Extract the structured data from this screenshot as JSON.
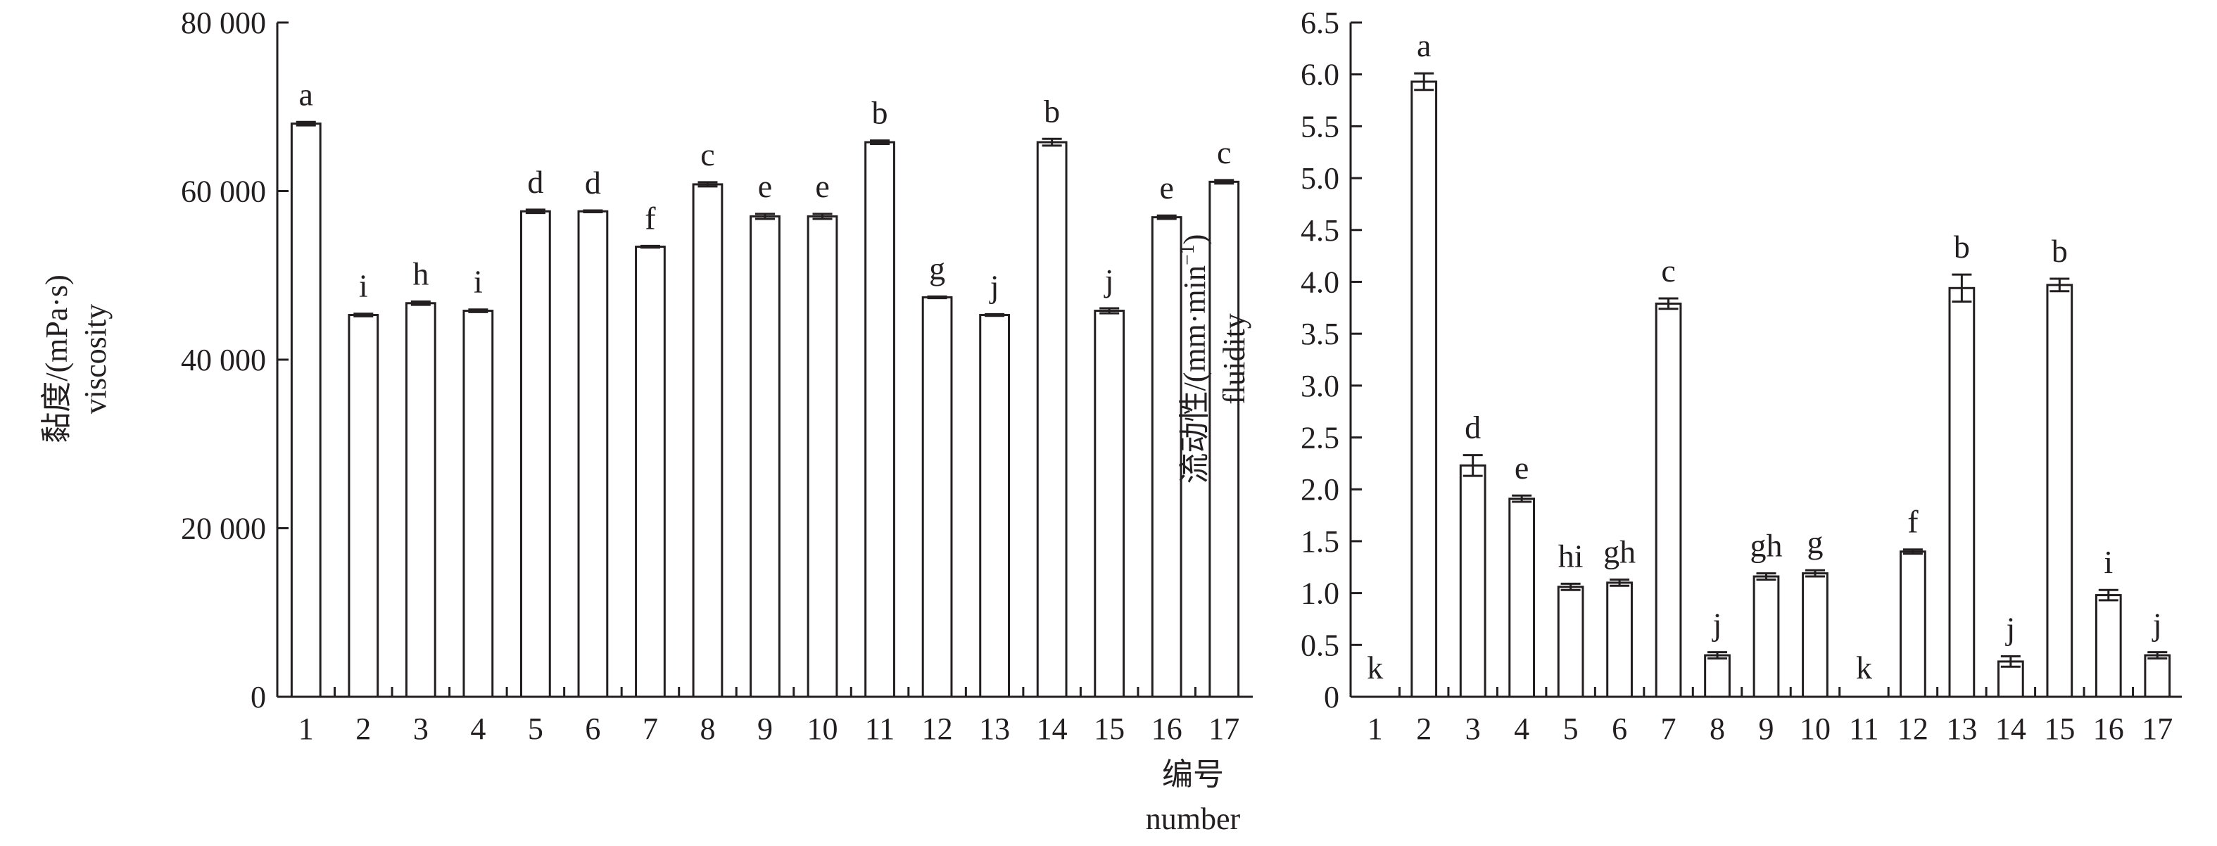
{
  "xlabel_cn": "编号",
  "xlabel_en": "number",
  "chart_data": [
    {
      "type": "bar",
      "ylabel_cn": "黏度/(mPa·s)",
      "ylabel_en": "viscosity",
      "categories": [
        "1",
        "2",
        "3",
        "4",
        "5",
        "6",
        "7",
        "8",
        "9",
        "10",
        "11",
        "12",
        "13",
        "14",
        "15",
        "16",
        "17"
      ],
      "values": [
        68000,
        45300,
        46700,
        45800,
        57600,
        57600,
        53400,
        60800,
        57000,
        57000,
        65800,
        47400,
        45300,
        65800,
        45800,
        56900,
        61100
      ],
      "errors": [
        200,
        150,
        200,
        150,
        200,
        100,
        100,
        250,
        300,
        300,
        200,
        100,
        100,
        400,
        300,
        200,
        200
      ],
      "letters": [
        "a",
        "i",
        "h",
        "i",
        "d",
        "d",
        "f",
        "c",
        "e",
        "e",
        "b",
        "g",
        "j",
        "b",
        "j",
        "e",
        "c"
      ],
      "ylim": [
        0,
        80000
      ],
      "yticks": [
        0,
        20000,
        40000,
        60000,
        80000
      ],
      "ytick_labels": [
        "0",
        "20 000",
        "40 000",
        "60 000",
        "80 000"
      ],
      "grid": false
    },
    {
      "type": "bar",
      "ylabel_cn": "流动性/(mm·min",
      "ylabel_sup": "−1",
      "ylabel_close": ")",
      "ylabel_en": "fluidity",
      "categories": [
        "1",
        "2",
        "3",
        "4",
        "5",
        "6",
        "7",
        "8",
        "9",
        "10",
        "11",
        "12",
        "13",
        "14",
        "15",
        "16",
        "17"
      ],
      "values": [
        0,
        5.93,
        2.23,
        1.91,
        1.06,
        1.1,
        3.79,
        0.4,
        1.16,
        1.19,
        0,
        1.4,
        3.94,
        0.34,
        3.97,
        0.98,
        0.4
      ],
      "errors": [
        0,
        0.08,
        0.1,
        0.03,
        0.03,
        0.03,
        0.05,
        0.03,
        0.03,
        0.03,
        0,
        0.02,
        0.13,
        0.05,
        0.06,
        0.05,
        0.03
      ],
      "letters": [
        "k",
        "a",
        "d",
        "e",
        "hi",
        "gh",
        "c",
        "j",
        "gh",
        "g",
        "k",
        "f",
        "b",
        "j",
        "b",
        "i",
        "j"
      ],
      "ylim": [
        0,
        6.5
      ],
      "yticks": [
        0,
        0.5,
        1.0,
        1.5,
        2.0,
        2.5,
        3.0,
        3.5,
        4.0,
        4.5,
        5.0,
        5.5,
        6.0,
        6.5
      ],
      "ytick_labels": [
        "0",
        "0.5",
        "1.0",
        "1.5",
        "2.0",
        "2.5",
        "3.0",
        "3.5",
        "4.0",
        "4.5",
        "5.0",
        "5.5",
        "6.0",
        "6.5"
      ],
      "grid": false
    }
  ]
}
